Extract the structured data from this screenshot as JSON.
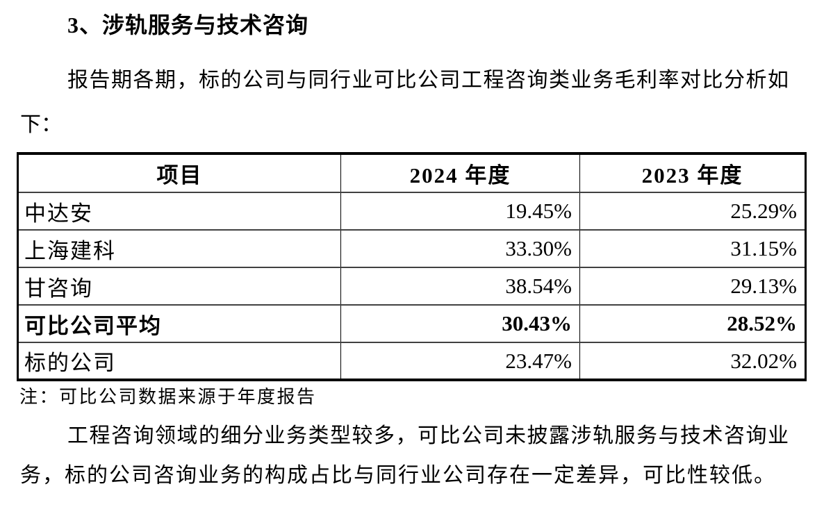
{
  "colors": {
    "text": "#000000",
    "background": "#ffffff",
    "table_border": "#000000"
  },
  "heading": "3、涉轨服务与技术咨询",
  "intro": {
    "line1": "报告期各期，标的公司与同行业可比公司工程咨询类业务毛利率对比分析如",
    "line2": "下："
  },
  "table": {
    "columns": [
      "项目",
      "2024 年度",
      "2023 年度"
    ],
    "rows": [
      {
        "item": "中达安",
        "fy2024": "19.45%",
        "fy2023": "25.29%",
        "bold": false
      },
      {
        "item": "上海建科",
        "fy2024": "33.30%",
        "fy2023": "31.15%",
        "bold": false
      },
      {
        "item": "甘咨询",
        "fy2024": "38.54%",
        "fy2023": "29.13%",
        "bold": false
      },
      {
        "item": "可比公司平均",
        "fy2024": "30.43%",
        "fy2023": "28.52%",
        "bold": true
      },
      {
        "item": "标的公司",
        "fy2024": "23.47%",
        "fy2023": "32.02%",
        "bold": false
      }
    ],
    "note": "注：可比公司数据来源于年度报告"
  },
  "closing": {
    "line1": "工程咨询领域的细分业务类型较多，可比公司未披露涉轨服务与技术咨询业",
    "line2": "务，标的公司咨询业务的构成占比与同行业公司存在一定差异，可比性较低。"
  }
}
